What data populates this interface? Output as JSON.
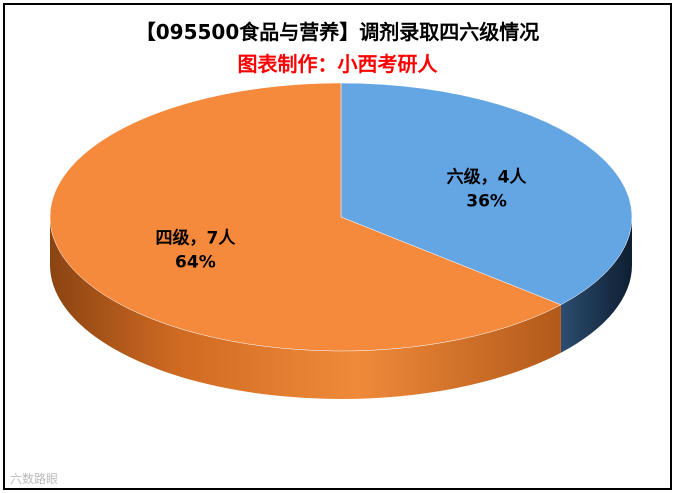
{
  "chart_data": {
    "type": "pie",
    "title": "【095500食品与营养】调剂录取四六级情况",
    "subtitle": "图表制作：小西考研人",
    "slices": [
      {
        "label": "六级",
        "count_label": "4人",
        "value": 4,
        "percent": "36%",
        "color": "#64a5e4",
        "side_color": "#1f3a5a"
      },
      {
        "label": "四级",
        "count_label": "7人",
        "value": 7,
        "percent": "64%",
        "color": "#f5893c",
        "side_color": "#c2621f"
      }
    ],
    "data_label_separator": "，",
    "legend": "none"
  },
  "watermark": "六数路眼"
}
